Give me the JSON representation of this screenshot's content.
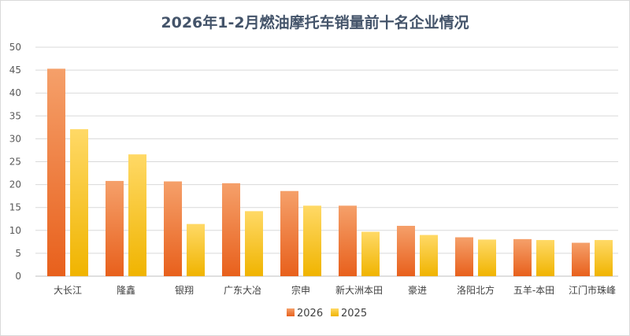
{
  "chart_data": {
    "type": "bar",
    "title": "2026年1-2月燃油摩托车销量前十名企业情况",
    "categories": [
      "大长江",
      "隆鑫",
      "银翔",
      "广东大冶",
      "宗申",
      "新大洲本田",
      "豪进",
      "洛阳北方",
      "五羊-本田",
      "江门市珠峰"
    ],
    "series": [
      {
        "name": "2026",
        "values": [
          45.3,
          20.8,
          20.7,
          20.3,
          18.6,
          15.4,
          11.0,
          8.5,
          8.1,
          7.3
        ]
      },
      {
        "name": "2025",
        "values": [
          32.1,
          26.6,
          11.4,
          14.2,
          15.4,
          9.7,
          9.0,
          8.0,
          7.9,
          7.9
        ]
      }
    ],
    "ylim": [
      0,
      50
    ],
    "yticks": [
      0,
      5,
      10,
      15,
      20,
      25,
      30,
      35,
      40,
      45,
      50
    ],
    "grid": true,
    "legend_position": "bottom-center",
    "colors": {
      "2026_top": "#f5a06a",
      "2026_bottom": "#e8601c",
      "2025_top": "#ffd966",
      "2025_bottom": "#f0b400",
      "grid": "#d9d9d9",
      "axis": "#bfbfbf"
    }
  }
}
